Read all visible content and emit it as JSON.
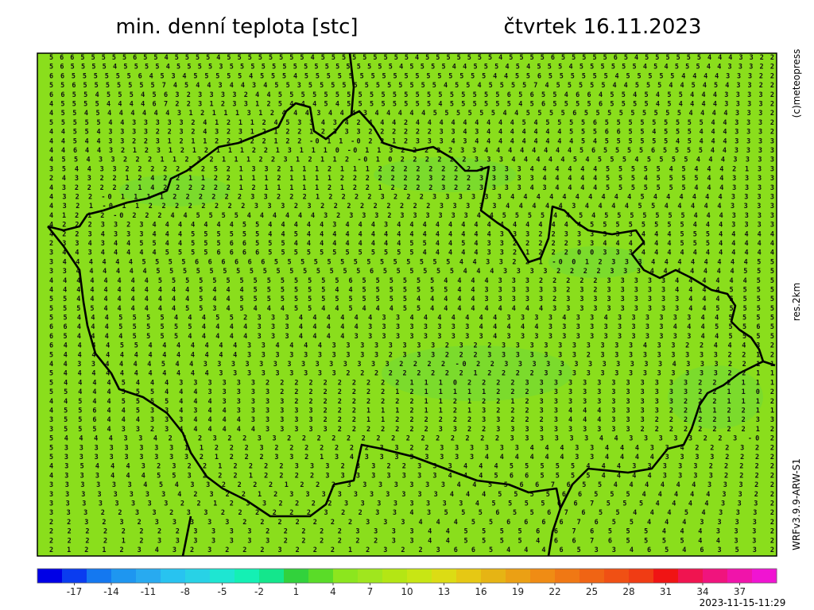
{
  "header": {
    "title": "min. denní teplota [stc]",
    "date": "čtvrtek 16.11.2023"
  },
  "side": {
    "copyright": "(c)meteopress",
    "resolution": "res.2km",
    "model": "WRFv3.9.9-ARW-S1"
  },
  "timestamp": "2023-11-15-11:29",
  "map": {
    "grid": [
      "5 6 6 5 5 5 5 5 6 5 5 4 5 5 5 5 4 5 5 5 5 5 5 5 5 4 5 5 5 5 5 5 5 5 5 4 5 5 5 5 5 5 5 4 5 5 5 5 6 5 5 5 5 5 6 5 4 5 5 5 5 5 5 4 4 4 3 3 2 2",
      "5 6 5 5 5 5 4 5 5 5 5 4 5 5 5 5 3 5 5 5 5 5 5 5 5 5 5 5 5 5 5 5 5 4 5 5 5 5 4 4 5 5 5 4 5 4 5 5 5 4 5 5 5 5 5 5 4 5 4 5 5 5 4 4 3 3 3 2 2",
      "6 6 5 5 5 5 5 5 6 4 5 3 4 5 5 5 5 5 4 5 5 5 4 5 5 5 5 5 5 5 5 5 5 5 5 5 5 5 5 5 4 4 5 5 6 5 5 5 5 5 5 4 5 5 5 5 5 4 4 4 4 3 3 3 2 2",
      "5 5 6 5 5 5 5 5 5 5 7 4 5 4 4 3 4 4 3 4 5 5 3 5 5 5 5 5 5 5 5 5 5 5 5 4 5 5 4 5 5 5 5 7 4 5 5 5 5 5 4 4 5 5 5 4 4 5 4 5 4 3 3 2 2",
      "6 6 5 5 4 5 5 5 4 5 6 3 2 3 3 3 3 2 4 4 5 5 5 5 5 5 5 5 5 5 5 5 5 5 5 5 5 5 5 5 6 5 6 5 5 4 6 6 4 5 5 4 5 4 5 5 4 4 4 3 3 3 3 2",
      "4 5 5 5 5 4 4 4 4 6 7 2 2 3 1 2 3 3 1 2 5 4 4 4 5 4 5 5 5 5 5 5 5 5 4 5 5 5 5 5 5 4 5 6 5 5 5 5 6 5 5 5 5 4 5 4 4 4 4 3 3 3 3 2",
      "4 5 5 4 5 4 4 4 4 4 4 3 1 2 1 1 1 3 1 2 4 4 4 3 4 4 4 3 4 4 4 4 4 5 5 5 5 5 5 4 4 5 5 5 5 6 5 5 5 5 5 5 5 5 5 4 4 4 4 3 3 3 2",
      "5 5 5 5 5 4 4 3 3 3 3 3 2 4 1 2 1 1 2 4 5 3 3 4 3 4 2 4 4 4 2 4 4 4 4 4 4 4 4 4 5 4 5 5 5 5 6 5 5 5 5 5 5 5 5 5 4 4 3 3 3 2",
      "4 4 5 5 4 3 3 3 3 2 2 3 2 4 3 2 3 1 2 1 2 2 1 2 3 3 3 2 2 2 2 2 2 3 3 4 3 4 4 4 4 4 4 4 5 5 5 6 6 5 5 4 5 5 5 4 4 4 3 3 3 2",
      "4 4 5 4 4 3 3 2 2 3 1 2 1 1 2 2 2 2 2 1 2 2 -0 1 1 -0 2 2 1 2 3 3 3 4 3 4 4 4 4 4 4 4 4 4 5 4 5 5 5 5 5 5 4 5 4 4 4 3 3 3 3",
      "4 4 6 4 4 3 2 1 2 3 1 2 1 2 1 1 1 2 2 1 3 1 1 1 0 -0 1 1 3 2 2 2 2 2 3 3 4 4 4 4 4 4 4 4 5 6 5 5 5 5 6 5 5 5 5 4 4 3 3 3 3",
      "4 5 5 4 3 3 2 2 2 1 1 2 3 2 1 1 1 2 2 3 1 2 1 1 2 -0 1 0 2 2 2 2 2 2 3 3 3 4 4 4 4 4 5 4 5 5 5 4 5 5 5 5 4 4 4 3 3 3 3",
      "3 5 4 4 3 3 2 2 2 2 2 1 2 5 2 1 3 3 2 1 1 1 2 1 1 1 2 2 2 2 2 2 2 2 3 3 3 3 4 4 4 4 4 4 5 5 5 5 5 4 5 4 4 4 2 1 3 3",
      "2 4 3 3 2 2 1 2 4 2 2 1 1 2 2 1 1 1 2 1 1 1 1 2 2 2 2 2 2 2 3 2 2 2 3 3 3 3 3 4 4 4 4 4 5 5 5 4 5 5 5 5 4 4 3 3 3 3",
      "4 3 2 2 2 2 2 1 4 2 2 2 2 2 2 1 2 1 1 1 1 1 2 1 2 2 1 2 2 2 2 3 2 2 3 3 3 3 4 3 4 4 4 4 5 5 5 5 5 5 5 4 4 4 3 3 3 3",
      "4 3 2 2 -0 1 1 1 1 2 2 2 2 2 2 3 3 2 2 2 1 2 2 2 2 3 2 2 2 3 3 3 3 3 3 4 4 4 4 4 4 4 4 4 4 5 4 4 4 4 4 4 3 3 3 3",
      "4 3 2 1 -0 1 1 2 2 2 2 2 2 2 2 3 3 3 2 3 2 2 2 2 2 2 2 2 2 3 3 3 3 3 4 4 4 4 4 3 4 4 4 4 5 5 4 4 4 4 4 3 3 3 3",
      "4 1 2 1 2 -0 2 2 2 4 4 5 5 5 5 4 4 4 4 4 4 3 2 3 3 3 2 3 3 3 3 3 3 4 4 5 5 5 5 4 4 5 4 5 5 5 5 5 5 5 4 4 4 3 3 3 3",
      "4 2 2 2 3 3 2 3 4 4 4 4 4 4 4 5 5 4 4 4 4 4 3 4 4 4 3 4 4 4 4 4 4 4 4 4 4 4 4 4 4 4 5 5 5 5 5 5 5 5 4 4 4 3 3 3 3",
      "4 2 2 3 4 3 3 3 4 4 4 5 5 5 5 5 5 4 4 5 4 4 4 4 4 4 4 4 4 4 4 4 4 4 4 3 3 3 2 2 3 3 3 3 3 3 4 4 4 5 5 5 4 4 4 4 4",
      "2 3 3 4 3 4 4 5 5 4 4 5 5 5 6 6 5 5 5 4 4 4 4 4 4 4 4 4 5 5 4 4 5 4 3 3 2 2 2 2 2 3 3 4 4 4 4 4 4 5 5 5 4 4 4 4 4",
      "3 4 4 3 4 4 4 4 4 5 5 5 5 6 6 6 6 5 5 5 5 5 5 5 5 5 5 5 5 4 4 4 4 4 3 3 2 1 2 2 2 0 0 3 3 3 4 4 4 4 4 4 4 4 4 4 4",
      "3 4 4 4 4 4 4 5 5 5 5 6 6 6 6 6 6 5 5 5 5 5 5 5 5 5 5 5 5 5 5 4 4 3 3 2 2 1 -0 0 1 2 3 3 3 4 4 4 4 4 4 4 4 5 5",
      "3 3 4 4 4 4 4 4 5 5 5 5 5 5 5 5 5 5 5 5 5 5 5 5 6 5 5 5 5 5 5 4 4 4 3 3 3 3 2 2 2 2 3 3 3 4 4 4 4 4 4 4 5 5 5",
      "4 4 4 4 4 4 4 4 5 5 5 5 5 5 5 5 5 5 5 5 5 5 6 5 5 5 5 5 5 4 4 4 4 3 3 3 2 2 2 2 2 3 3 3 3 3 4 4 4 4 4 4 5 5",
      "4 4 4 4 4 4 4 4 4 4 4 5 4 4 4 5 5 5 5 5 5 4 4 5 5 5 5 5 5 5 4 4 3 3 3 3 3 3 2 3 2 3 3 3 3 3 4 4 4 4 5 5 5 5",
      "5 5 4 4 4 4 4 4 4 4 4 5 4 4 5 5 5 5 5 5 5 5 5 5 5 5 5 4 4 4 4 4 3 3 3 3 3 2 3 3 3 3 3 3 3 3 3 4 4 4 5 5 5 5",
      "5 5 5 5 4 4 4 4 4 4 5 5 3 4 5 4 4 4 5 5 4 4 5 4 4 4 5 5 4 4 4 4 4 4 4 4 4 3 3 3 3 3 3 3 3 3 3 4 4 5 5 5 5 5",
      "5 5 4 4 4 5 5 5 5 4 4 4 5 5 2 3 3 3 4 4 4 4 4 4 3 3 4 4 4 4 4 4 4 3 3 3 3 4 3 3 4 3 3 3 3 3 3 4 4 5 5 5 5",
      "6 6 4 4 4 5 5 5 5 5 5 4 4 4 4 3 3 3 4 4 4 4 4 3 3 3 3 3 3 3 3 4 4 4 4 4 3 3 3 3 3 3 3 3 3 4 4 4 5 5 5 6 5",
      "6 5 4 4 4 4 5 5 5 5 4 4 4 4 4 3 3 3 4 4 4 4 3 3 3 3 3 3 3 3 3 3 4 3 3 3 3 3 3 3 3 3 3 3 3 3 3 4 4 5 5 5 5",
      "6 4 4 4 4 5 5 4 4 4 4 4 4 4 3 3 4 4 4 4 3 3 3 3 3 3 3 3 2 3 2 2 3 3 3 3 3 3 3 3 3 3 4 3 3 2 2 4 4 4 3 2",
      "5 4 4 4 4 4 4 4 4 4 4 4 4 4 3 3 3 3 3 3 3 3 3 3 2 3 3 3 2 2 2 3 3 3 3 3 3 3 2 3 3 3 3 3 3 3 3 3 2 2 1 2",
      "4 4 3 3 4 4 4 4 5 4 4 3 3 3 3 3 3 3 3 3 3 3 3 3 3 2 2 2 2 -0 2 2 3 3 3 3 3 3 3 3 3 3 3 3 4 3 3 3 2 2 1 1",
      "5 4 4 4 4 4 4 4 4 4 4 4 3 3 3 3 3 3 3 3 3 2 2 2 2 2 2 2 2 2 1 2 2 2 2 3 3 3 3 3 3 3 3 3 3 3 3 3 2 2 1 1",
      "5 4 4 4 4 5 4 4 4 3 3 3 3 3 3 2 2 2 2 2 2 2 2 2 2 1 1 1 0 2 2 2 2 3 3 3 3 3 3 3 3 3 3 3 3 2 2 2 1 1 1",
      "5 5 4 4 4 5 5 5 4 4 4 3 3 3 3 3 2 2 2 2 2 2 2 2 1 2 1 1 1 1 1 2 2 2 3 3 3 3 3 3 3 3 3 3 3 2 2 1 1 0 2",
      "4 4 5 4 4 5 5 5 5 4 4 4 3 3 3 3 3 2 2 2 2 2 2 2 2 2 1 1 2 1 2 2 1 2 3 3 3 3 3 3 3 3 3 3 2 2 2 1 1 1 2",
      "4 5 5 6 4 4 5 3 3 4 3 4 4 3 3 3 3 3 3 2 2 2 1 1 1 2 1 1 2 1 3 2 2 2 3 3 4 4 4 3 3 3 3 2 2 1 1 2 2 1 1",
      "3 5 5 6 4 4 4 3 3 3 4 4 4 4 3 3 3 3 3 2 2 2 1 1 2 2 2 2 2 2 3 3 2 2 2 3 4 4 4 3 3 3 2 2 2 2 2 1 2 3 3",
      "3 5 5 5 4 3 3 2 3 4 4 4 4 4 4 3 3 3 3 3 2 2 2 2 2 2 2 3 3 2 2 3 3 3 3 3 3 3 3 3 3 2 2 2 2 2 2 2 2 1 2",
      "5 4 4 4 4 3 3 4 2 1 2 3 2 2 3 3 2 2 2 2 2 2 2 2 2 2 2 2 2 2 2 3 3 3 3 3 3 4 4 3 3 3 3 3 2 2 3 -0 2",
      "5 3 3 3 3 3 3 3 3 1 1 2 2 2 3 2 2 2 2 2 2 2 3 3 2 2 3 3 3 3 3 3 4 4 4 3 3 4 4 4 3 3 4 2 2 2 3 2 2",
      "5 3 3 3 3 3 3 3 3 3 2 1 2 2 2 3 3 2 1 3 4 3 3 3 3 3 3 3 3 4 4 4 4 4 4 3 3 4 4 4 4 3 3 3 3 2 2 2 2",
      "4 3 5 4 4 4 3 2 3 2 2 1 2 2 2 2 3 3 3 2 3 3 2 2 3 3 3 4 4 4 5 5 5 5 5 4 4 4 3 3 3 3 3 2 2 2 2 2",
      "4 3 3 3 4 4 4 5 5 3 2 2 2 1 2 2 2 2 3 3 3 3 3 3 3 3 4 4 4 5 6 6 5 5 5 5 4 4 4 4 3 3 3 3 2 2 2 2",
      "3 3 3 3 3 3 4 5 4 3 3 2 2 2 2 1 2 2 2 3 3 3 3 3 3 3 4 4 5 5 6 6 7 6 5 5 4 4 4 4 4 4 3 3 3 2 2",
      "3 3 3 3 3 3 3 3 4 2 3 2 2 1 2 3 3 3 3 3 3 3 3 3 3 4 4 4 5 5 5 5 6 6 5 5 5 4 4 4 4 4 3 3 2 2",
      "3 3 3 3 3 3 3 3 2 2 1 2 3 3 2 2 2 2 3 3 3 3 3 3 3 3 4 5 5 5 5 6 6 7 5 5 5 4 4 4 4 3 3 3 2",
      "3 3 3 2 2 3 3 2 3 3 2 2 2 2 2 2 3 2 2 3 3 4 3 5 5 5 6 5 5 6 7 6 5 5 4 4 4 5 4 3 3 3 2",
      "2 2 3 2 3 2 3 3 3 3 3 2 2 2 2 2 2 2 3 3 3 4 4 4 5 5 6 6 6 6 7 6 5 5 4 4 4 3 3 3 3 2",
      "2 2 2 2 2 2 2 2 3 3 3 3 2 2 2 2 2 3 3 3 3 4 4 5 5 5 5 6 6 7 6 5 5 5 4 4 4 3 3 3 2",
      "2 2 2 2 1 2 3 3 3 3 3 3 3 2 2 2 2 2 2 3 3 4 4 5 5 5 5 4 6 6 7 6 5 5 5 5 4 4 3 3 2",
      "2 1 2 1 2 3 4 3 2 3 2 2 2 3 2 2 2 1 2 3 2 2 3 6 6 5 4 4 4 6 5 3 3 4 6 5 4 6 3 5 3 2"
    ]
  },
  "colorbar": {
    "lim": [
      -20,
      40
    ],
    "ticks": [
      -17,
      -14,
      -11,
      -8,
      -5,
      -2,
      1,
      4,
      7,
      10,
      13,
      16,
      19,
      22,
      25,
      28,
      31,
      34,
      37
    ],
    "colors": [
      "#0000e6",
      "#0a3cf0",
      "#1478f0",
      "#1e96f0",
      "#28aaf0",
      "#28c3f0",
      "#28d2e6",
      "#1ee6d2",
      "#14f0b4",
      "#14e68c",
      "#32d23c",
      "#5adc28",
      "#8ce61e",
      "#a0e61e",
      "#b4e614",
      "#c8e614",
      "#dcdc14",
      "#e6c814",
      "#e6b414",
      "#eba014",
      "#f08c14",
      "#f07814",
      "#f06414",
      "#f05014",
      "#f03c14",
      "#f01414",
      "#f01450",
      "#f0147d",
      "#f014aa",
      "#f014d2"
    ]
  }
}
